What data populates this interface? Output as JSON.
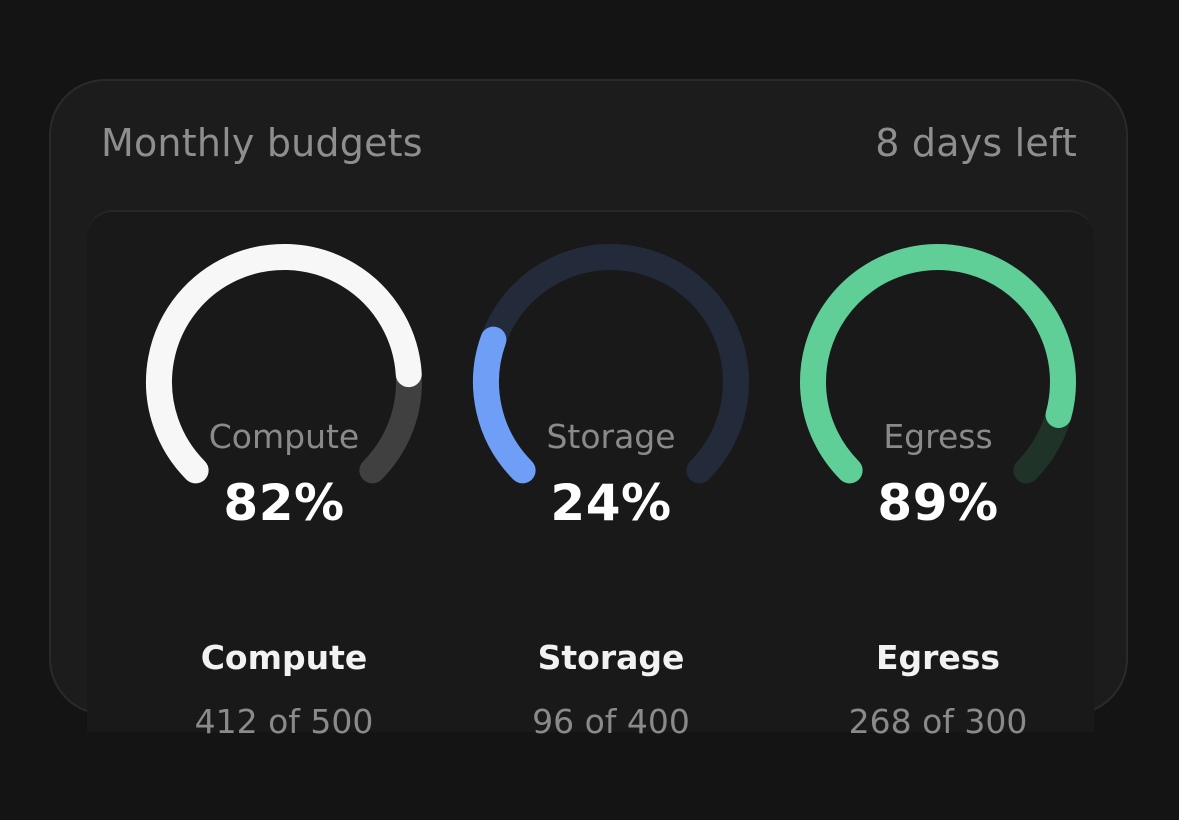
{
  "card": {
    "title": "Monthly budgets",
    "days_left": "8 days left"
  },
  "gauges": [
    {
      "name": "Compute",
      "percent_label": "82%",
      "fraction": 0.82,
      "used": 412,
      "total": 500,
      "usage_label": "412 of 500",
      "color": "#f7f7f7",
      "track_color": "#404040"
    },
    {
      "name": "Storage",
      "percent_label": "24%",
      "fraction": 0.24,
      "used": 96,
      "total": 400,
      "usage_label": "96 of 400",
      "color": "#6e9ef5",
      "track_color": "#232b3b"
    },
    {
      "name": "Egress",
      "percent_label": "89%",
      "fraction": 0.89,
      "used": 268,
      "total": 300,
      "usage_label": "268 of 300",
      "color": "#5fcf97",
      "track_color": "#1f3328"
    }
  ]
}
